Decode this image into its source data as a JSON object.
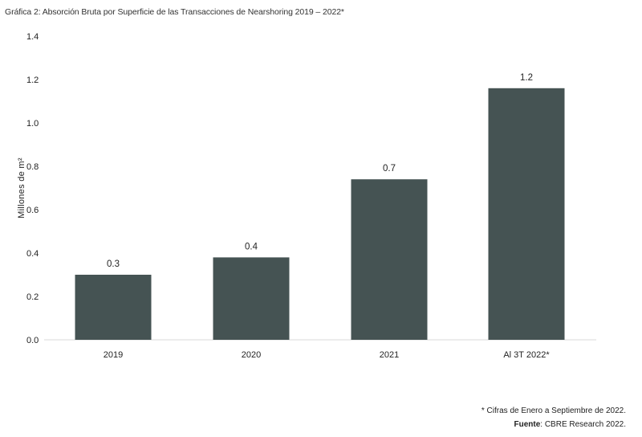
{
  "chart_data": {
    "type": "bar",
    "title": "Gráfica 2: Absorción Bruta por Superficie de las Transacciones de Nearshoring 2019 – 2022*",
    "ylabel": "Millones de m²",
    "xlabel": "",
    "categories": [
      "2019",
      "2020",
      "2021",
      "Al 3T 2022*"
    ],
    "values": [
      0.3,
      0.38,
      0.74,
      1.16
    ],
    "data_labels": [
      "0.3",
      "0.4",
      "0.7",
      "1.2"
    ],
    "ylim": [
      0,
      1.4
    ],
    "yticks": [
      "0.0",
      "0.2",
      "0.4",
      "0.6",
      "0.8",
      "1.0",
      "1.2",
      "1.4"
    ],
    "bar_color": "#455353",
    "grid": false,
    "legend": "none"
  },
  "footer": {
    "note": "* Cifras de Enero a Septiembre de 2022.",
    "source_label": "Fuente",
    "source_text": ": CBRE Research 2022."
  }
}
